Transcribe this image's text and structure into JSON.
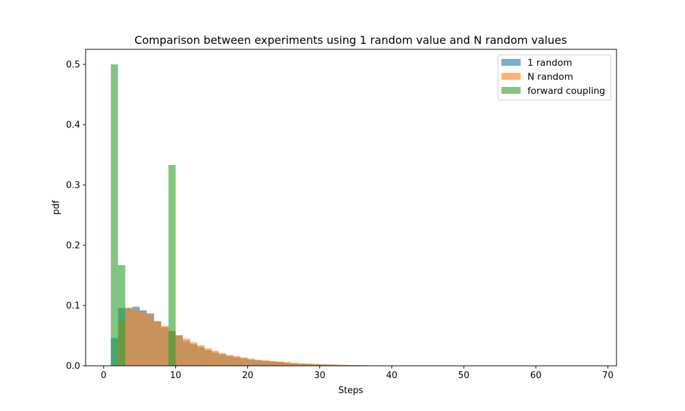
{
  "chart_data": {
    "type": "bar",
    "title": "Comparison between experiments using 1 random value and N random values",
    "xlabel": "Steps",
    "ylabel": "pdf",
    "xlim": [
      -2.5,
      71.2
    ],
    "ylim": [
      0,
      0.525
    ],
    "xticks": [
      0,
      10,
      20,
      30,
      40,
      50,
      60,
      70
    ],
    "yticks": [
      0.0,
      0.1,
      0.2,
      0.3,
      0.4,
      0.5
    ],
    "xtick_labels": [
      "0",
      "10",
      "20",
      "30",
      "40",
      "50",
      "60",
      "70"
    ],
    "ytick_labels": [
      "0.0",
      "0.1",
      "0.2",
      "0.3",
      "0.4",
      "0.5"
    ],
    "grid": false,
    "legend_position": "upper-right",
    "bin_width": 1.0,
    "series": [
      {
        "name": "1 random",
        "color": "#1f77b4",
        "opacity": 0.6,
        "bin_start": 1,
        "values": [
          0.046,
          0.096,
          0.096,
          0.098,
          0.092,
          0.087,
          0.074,
          0.064,
          0.057,
          0.05,
          0.041,
          0.036,
          0.031,
          0.026,
          0.022,
          0.019,
          0.016,
          0.014,
          0.012,
          0.01,
          0.009,
          0.008,
          0.007,
          0.006,
          0.005,
          0.004,
          0.0035,
          0.003,
          0.0025,
          0.002,
          0.0018,
          0.0015,
          0.0012,
          0.001,
          0.0008,
          0.0007,
          0.0005,
          0.0004,
          0.0003
        ]
      },
      {
        "name": "N random",
        "color": "#ff7f0e",
        "opacity": 0.6,
        "bin_start": 2,
        "values": [
          0.074,
          0.096,
          0.094,
          0.091,
          0.084,
          0.074,
          0.066,
          0.058,
          0.051,
          0.045,
          0.039,
          0.034,
          0.029,
          0.025,
          0.021,
          0.018,
          0.016,
          0.014,
          0.012,
          0.01,
          0.009,
          0.008,
          0.007,
          0.006,
          0.005,
          0.004,
          0.0035,
          0.003,
          0.0027,
          0.0022,
          0.0018,
          0.0015,
          0.0012,
          0.001,
          0.0008,
          0.0006,
          0.0005,
          0.0004
        ]
      },
      {
        "name": "forward coupling",
        "color": "#2ca02c",
        "opacity": 0.6,
        "bin_start": 1,
        "values": [
          0.5,
          0.167,
          0,
          0,
          0,
          0,
          0,
          0,
          0.333
        ]
      }
    ]
  }
}
